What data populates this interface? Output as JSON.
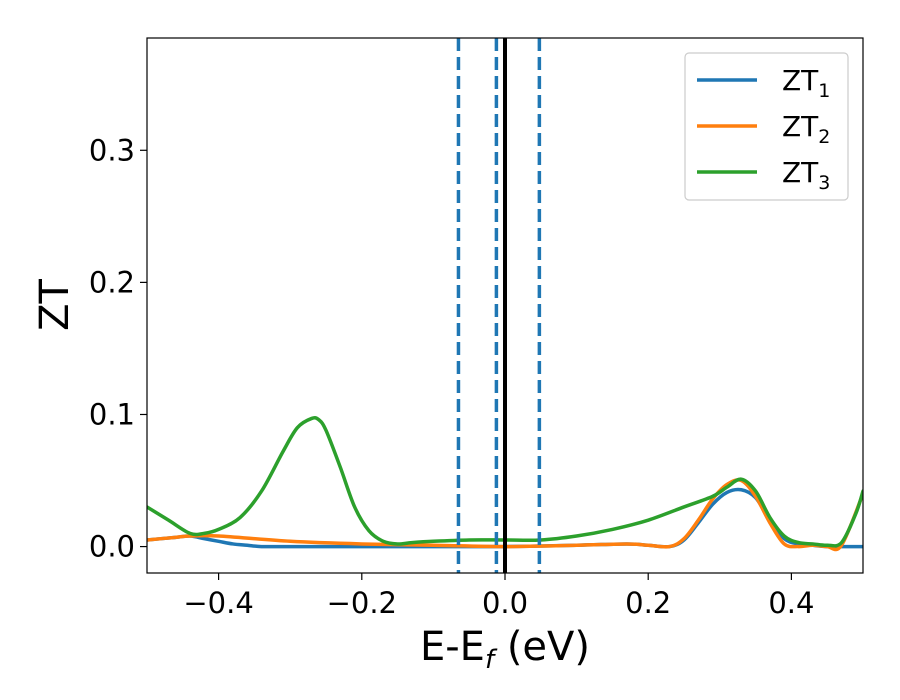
{
  "chart_data": {
    "type": "line",
    "xlabel": "E-E",
    "xlabel_sub": "f",
    "xlabel_unit": " (eV)",
    "ylabel": "ZT",
    "xlim": [
      -0.5,
      0.5
    ],
    "ylim": [
      -0.02,
      0.385
    ],
    "x_ticks": [
      -0.4,
      -0.2,
      0.0,
      0.2,
      0.4
    ],
    "x_tick_labels": [
      "−0.4",
      "−0.2",
      "0.0",
      "0.2",
      "0.4"
    ],
    "y_ticks": [
      0.0,
      0.1,
      0.2,
      0.3
    ],
    "y_tick_labels": [
      "0.0",
      "0.1",
      "0.2",
      "0.3"
    ],
    "grid": false,
    "legend_position": "top-right",
    "vertical_lines": [
      {
        "x": -0.065,
        "style": "dashed",
        "color": "#1f77b4"
      },
      {
        "x": -0.012,
        "style": "dashed",
        "color": "#1f77b4"
      },
      {
        "x": 0.0,
        "style": "solid",
        "color": "#000000"
      },
      {
        "x": 0.048,
        "style": "dashed",
        "color": "#1f77b4"
      }
    ],
    "series": [
      {
        "name": "ZT",
        "name_sub": "1",
        "color": "#1f77b4",
        "x": [
          -0.5,
          -0.46,
          -0.44,
          -0.42,
          -0.4,
          -0.38,
          -0.36,
          -0.34,
          -0.3,
          -0.2,
          -0.1,
          0.0,
          0.1,
          0.17,
          0.2,
          0.23,
          0.25,
          0.27,
          0.29,
          0.31,
          0.33,
          0.35,
          0.37,
          0.39,
          0.41,
          0.43,
          0.45,
          0.5
        ],
        "y": [
          0.005,
          0.007,
          0.008,
          0.006,
          0.004,
          0.002,
          0.001,
          0.0,
          0.0,
          0.0,
          0.0,
          0.0,
          0.001,
          0.002,
          0.001,
          0.0,
          0.005,
          0.018,
          0.032,
          0.041,
          0.043,
          0.037,
          0.02,
          0.006,
          0.002,
          0.001,
          0.0,
          0.0
        ]
      },
      {
        "name": "ZT",
        "name_sub": "2",
        "color": "#ff7f0e",
        "x": [
          -0.5,
          -0.46,
          -0.44,
          -0.4,
          -0.3,
          -0.2,
          -0.1,
          0.0,
          0.1,
          0.17,
          0.2,
          0.23,
          0.25,
          0.27,
          0.29,
          0.31,
          0.33,
          0.35,
          0.37,
          0.39,
          0.41,
          0.43,
          0.45,
          0.47,
          0.5
        ],
        "y": [
          0.005,
          0.007,
          0.008,
          0.008,
          0.004,
          0.002,
          0.001,
          0.0,
          0.001,
          0.002,
          0.001,
          0.0,
          0.006,
          0.02,
          0.036,
          0.047,
          0.05,
          0.038,
          0.018,
          0.002,
          0.0,
          0.001,
          0.0,
          0.001,
          0.04
        ]
      },
      {
        "name": "ZT",
        "name_sub": "3",
        "color": "#2ca02c",
        "x": [
          -0.5,
          -0.47,
          -0.44,
          -0.42,
          -0.4,
          -0.37,
          -0.34,
          -0.31,
          -0.29,
          -0.27,
          -0.26,
          -0.25,
          -0.23,
          -0.21,
          -0.19,
          -0.17,
          -0.15,
          -0.13,
          -0.1,
          -0.05,
          0.0,
          0.05,
          0.1,
          0.15,
          0.2,
          0.25,
          0.29,
          0.31,
          0.33,
          0.35,
          0.37,
          0.39,
          0.41,
          0.43,
          0.45,
          0.47,
          0.49,
          0.5
        ],
        "y": [
          0.03,
          0.02,
          0.01,
          0.01,
          0.013,
          0.022,
          0.042,
          0.072,
          0.09,
          0.097,
          0.096,
          0.088,
          0.06,
          0.03,
          0.012,
          0.004,
          0.002,
          0.003,
          0.004,
          0.005,
          0.005,
          0.005,
          0.008,
          0.013,
          0.02,
          0.03,
          0.038,
          0.045,
          0.051,
          0.042,
          0.022,
          0.008,
          0.003,
          0.002,
          0.001,
          0.003,
          0.025,
          0.042
        ]
      }
    ]
  }
}
